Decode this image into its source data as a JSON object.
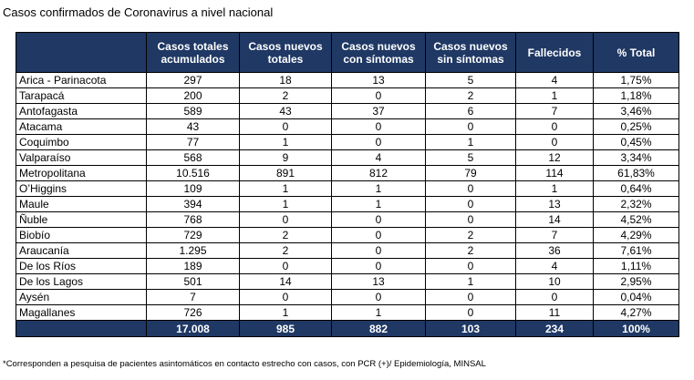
{
  "title": "Casos confirmados de Coronavirus a nivel nacional",
  "table": {
    "header": [
      "",
      "Casos totales acumulados",
      "Casos nuevos totales",
      "Casos nuevos con síntomas",
      "Casos nuevos sin síntomas",
      "Fallecidos",
      "% Total"
    ],
    "rows": [
      [
        "Arica - Parinacota",
        "297",
        "18",
        "13",
        "5",
        "4",
        "1,75%"
      ],
      [
        "Tarapacá",
        "200",
        "2",
        "0",
        "2",
        "1",
        "1,18%"
      ],
      [
        "Antofagasta",
        "589",
        "43",
        "37",
        "6",
        "7",
        "3,46%"
      ],
      [
        "Atacama",
        "43",
        "0",
        "0",
        "0",
        "0",
        "0,25%"
      ],
      [
        "Coquimbo",
        "77",
        "1",
        "0",
        "1",
        "0",
        "0,45%"
      ],
      [
        "Valparaíso",
        "568",
        "9",
        "4",
        "5",
        "12",
        "3,34%"
      ],
      [
        "Metropolitana",
        "10.516",
        "891",
        "812",
        "79",
        "114",
        "61,83%"
      ],
      [
        "O’Higgins",
        "109",
        "1",
        "1",
        "0",
        "1",
        "0,64%"
      ],
      [
        "Maule",
        "394",
        "1",
        "1",
        "0",
        "13",
        "2,32%"
      ],
      [
        "Ñuble",
        "768",
        "0",
        "0",
        "0",
        "14",
        "4,52%"
      ],
      [
        "Biobío",
        "729",
        "2",
        "0",
        "2",
        "7",
        "4,29%"
      ],
      [
        "Araucanía",
        "1.295",
        "2",
        "0",
        "2",
        "36",
        "7,61%"
      ],
      [
        "De los Ríos",
        "189",
        "0",
        "0",
        "0",
        "4",
        "1,11%"
      ],
      [
        "De los Lagos",
        "501",
        "14",
        "13",
        "1",
        "10",
        "2,95%"
      ],
      [
        "Aysén",
        "7",
        "0",
        "0",
        "0",
        "0",
        "0,04%"
      ],
      [
        "Magallanes",
        "726",
        "1",
        "1",
        "0",
        "11",
        "4,27%"
      ]
    ],
    "totals": [
      "17.008",
      "985",
      "882",
      "103",
      "234",
      "100%"
    ]
  },
  "footnote": "*Corresponden a pesquisa de pacientes asintomáticos en contacto estrecho con casos, con PCR (+)/ Epidemiología, MINSAL"
}
